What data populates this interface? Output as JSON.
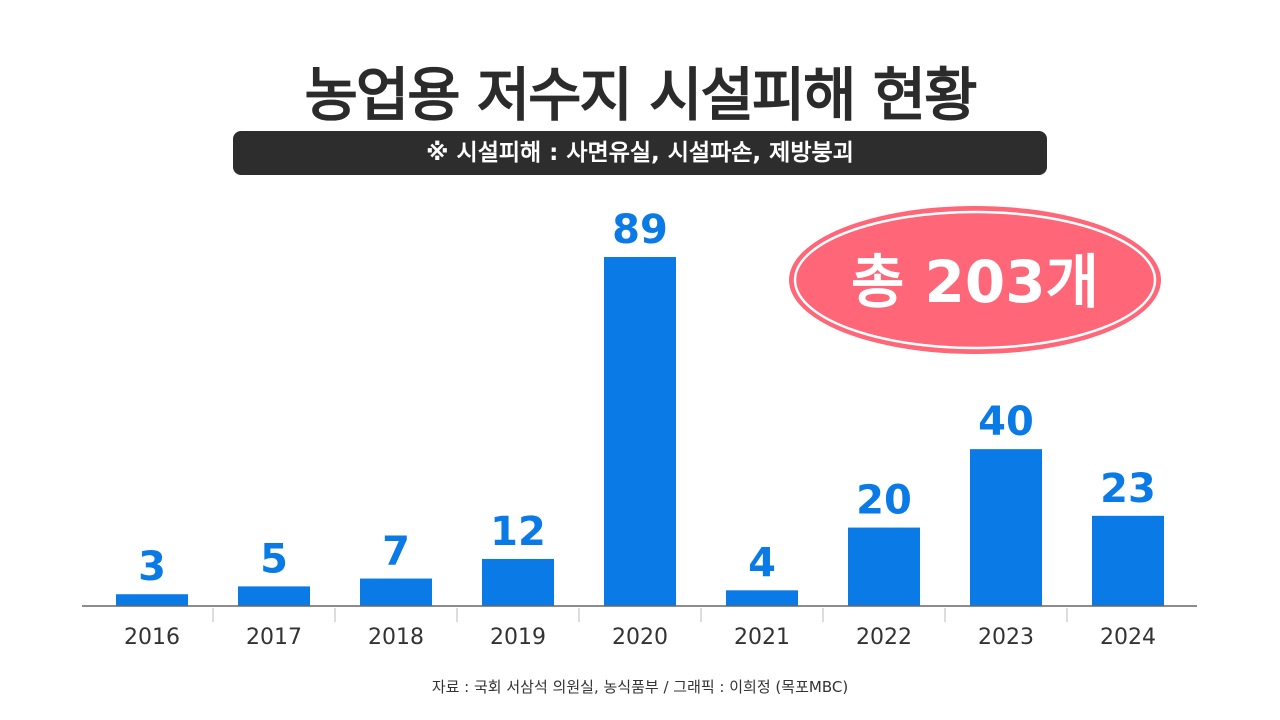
{
  "title": "농업용 저수지 시설피해 현황",
  "subtitle": "※ 시설피해 : 사면유실, 시설파손, 제방붕괴",
  "total_badge": "총 203개",
  "source": "자료 : 국회 서삼석 의원실, 농식품부 / 그래픽 : 이희정 (목포MBC)",
  "colors": {
    "bar": "#0a7ae6",
    "badge": "#ff6677",
    "title": "#2b2b2b"
  },
  "chart_data": {
    "type": "bar",
    "title": "농업용 저수지 시설피해 현황",
    "categories": [
      "2016",
      "2017",
      "2018",
      "2019",
      "2020",
      "2021",
      "2022",
      "2023",
      "2024"
    ],
    "values": [
      3,
      5,
      7,
      12,
      89,
      4,
      20,
      40,
      23
    ],
    "xlabel": "",
    "ylabel": "",
    "ylim": [
      0,
      89
    ],
    "grid": false,
    "legend": "none"
  }
}
